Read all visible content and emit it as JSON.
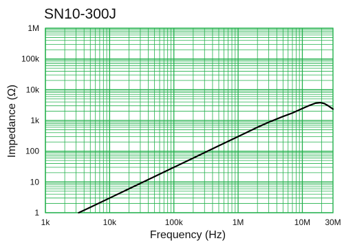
{
  "chart_data": {
    "type": "line",
    "title": "SN10-300J",
    "xlabel": "Frequency (Hz)",
    "ylabel": "Impedance (Ω)",
    "x_scale": "log",
    "y_scale": "log",
    "xlim": [
      1000,
      30000000
    ],
    "ylim": [
      1,
      1000000
    ],
    "grid": true,
    "grid_color": "#22b04b",
    "line_color": "#000000",
    "x_ticks": [
      {
        "value": 1000,
        "label": "1k"
      },
      {
        "value": 10000,
        "label": "10k"
      },
      {
        "value": 100000,
        "label": "100k"
      },
      {
        "value": 1000000,
        "label": "1M"
      },
      {
        "value": 10000000,
        "label": "10M"
      },
      {
        "value": 30000000,
        "label": "30M"
      }
    ],
    "y_ticks": [
      {
        "value": 1,
        "label": "1"
      },
      {
        "value": 10,
        "label": "10"
      },
      {
        "value": 100,
        "label": "100"
      },
      {
        "value": 1000,
        "label": "1k"
      },
      {
        "value": 10000,
        "label": "10k"
      },
      {
        "value": 100000,
        "label": "100k"
      },
      {
        "value": 1000000,
        "label": "1M"
      }
    ],
    "series": [
      {
        "x": [
          3300,
          5000,
          10000,
          20000,
          50000,
          100000,
          200000,
          500000,
          1000000,
          2000000,
          3000000,
          5000000,
          7000000,
          10000000,
          13000000,
          16000000,
          19000000,
          22000000,
          25000000,
          30000000
        ],
        "y": [
          1,
          1.5,
          3,
          6,
          15,
          30,
          60,
          150,
          300,
          600,
          880,
          1350,
          1750,
          2450,
          3100,
          3650,
          3800,
          3550,
          3050,
          2350
        ]
      }
    ]
  }
}
